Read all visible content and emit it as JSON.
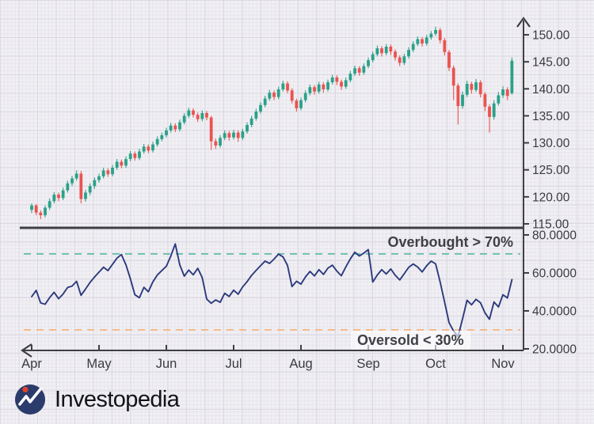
{
  "price_panel": {
    "y_axis_labels": [
      "150.00",
      "145.00",
      "140.00",
      "135.00",
      "130.00",
      "125.00",
      "120.00",
      "115.00"
    ]
  },
  "rsi_panel": {
    "y_axis_labels": [
      "80.0000",
      "60.0000",
      "40.0000",
      "20.0000"
    ],
    "overbought_label": "Overbought > 70%",
    "oversold_label": "Oversold < 30%"
  },
  "x_axis": {
    "months": [
      "Apr",
      "May",
      "Jun",
      "Jul",
      "Aug",
      "Sep",
      "Oct",
      "Nov"
    ]
  },
  "branding": {
    "logo_text": "Investopedia"
  },
  "colors": {
    "up": "#2aa189",
    "down": "#ea5350",
    "rsi_line": "#2c3a7d",
    "overbought": "#5fbcaa",
    "oversold": "#f4b57e",
    "axis": "#3f3e44",
    "logo_navy": "#2b3b6b",
    "logo_dot": "#e0452c"
  },
  "chart_data": [
    {
      "type": "candlestick",
      "name": "price",
      "ylim": [
        115,
        150
      ],
      "y_ticks": [
        150,
        145,
        140,
        135,
        130,
        125,
        120,
        115
      ],
      "x_tick_labels": [
        "Apr",
        "May",
        "Jun",
        "Jul",
        "Aug",
        "Sep",
        "Oct",
        "Nov"
      ],
      "axis_side": "right",
      "ohlc": [
        [
          117.6,
          118.8,
          117.0,
          118.4
        ],
        [
          118.4,
          118.7,
          116.6,
          117.1
        ],
        [
          117.1,
          117.5,
          115.9,
          116.6
        ],
        [
          116.6,
          118.4,
          116.2,
          118.0
        ],
        [
          118.0,
          119.7,
          117.6,
          119.2
        ],
        [
          119.2,
          120.9,
          118.8,
          120.4
        ],
        [
          120.4,
          120.8,
          119.2,
          119.8
        ],
        [
          119.8,
          121.7,
          119.4,
          121.2
        ],
        [
          121.2,
          123.0,
          120.8,
          122.5
        ],
        [
          122.5,
          123.9,
          122.0,
          123.4
        ],
        [
          123.4,
          124.9,
          123.0,
          124.3
        ],
        [
          124.3,
          124.8,
          118.8,
          119.6
        ],
        [
          119.6,
          121.3,
          119.1,
          120.8
        ],
        [
          120.8,
          122.5,
          120.3,
          122.0
        ],
        [
          122.0,
          123.6,
          121.5,
          123.1
        ],
        [
          123.1,
          124.3,
          122.6,
          123.8
        ],
        [
          123.8,
          125.4,
          123.4,
          124.9
        ],
        [
          124.9,
          125.3,
          123.7,
          124.2
        ],
        [
          124.2,
          125.9,
          123.8,
          125.4
        ],
        [
          125.4,
          127.0,
          125.0,
          126.5
        ],
        [
          126.5,
          126.9,
          125.3,
          125.8
        ],
        [
          125.8,
          127.5,
          125.4,
          127.0
        ],
        [
          127.0,
          128.5,
          126.6,
          128.0
        ],
        [
          128.0,
          128.4,
          126.7,
          127.2
        ],
        [
          127.2,
          128.9,
          126.8,
          128.4
        ],
        [
          128.4,
          129.8,
          128.0,
          129.3
        ],
        [
          129.3,
          129.7,
          128.1,
          128.6
        ],
        [
          128.6,
          130.2,
          128.2,
          129.7
        ],
        [
          129.7,
          131.2,
          129.3,
          130.7
        ],
        [
          130.7,
          131.9,
          130.3,
          131.4
        ],
        [
          131.4,
          132.8,
          131.0,
          132.3
        ],
        [
          132.3,
          133.7,
          131.9,
          133.2
        ],
        [
          133.2,
          133.6,
          132.0,
          132.5
        ],
        [
          132.5,
          134.3,
          132.1,
          133.8
        ],
        [
          133.8,
          135.5,
          133.4,
          135.0
        ],
        [
          135.0,
          136.5,
          134.6,
          136.0
        ],
        [
          136.0,
          136.4,
          134.7,
          135.2
        ],
        [
          135.2,
          135.6,
          133.9,
          134.4
        ],
        [
          134.4,
          136.0,
          134.0,
          135.5
        ],
        [
          135.5,
          135.9,
          134.2,
          134.7
        ],
        [
          134.7,
          135.0,
          128.7,
          130.3
        ],
        [
          130.3,
          130.8,
          128.9,
          129.5
        ],
        [
          129.5,
          131.4,
          129.1,
          130.9
        ],
        [
          130.9,
          132.3,
          130.5,
          131.8
        ],
        [
          131.8,
          132.2,
          130.4,
          131.0
        ],
        [
          131.0,
          132.4,
          130.6,
          131.9
        ],
        [
          131.9,
          132.3,
          130.2,
          130.9
        ],
        [
          130.9,
          132.6,
          130.5,
          132.1
        ],
        [
          132.1,
          133.8,
          131.7,
          133.3
        ],
        [
          133.3,
          135.0,
          132.9,
          134.5
        ],
        [
          134.5,
          136.3,
          134.1,
          135.8
        ],
        [
          135.8,
          137.5,
          135.4,
          137.0
        ],
        [
          137.0,
          138.7,
          136.6,
          138.2
        ],
        [
          138.2,
          139.8,
          137.8,
          139.3
        ],
        [
          139.3,
          139.7,
          137.9,
          138.5
        ],
        [
          138.5,
          140.4,
          138.1,
          139.9
        ],
        [
          139.9,
          141.5,
          139.5,
          141.0
        ],
        [
          141.0,
          141.4,
          139.2,
          139.7
        ],
        [
          139.7,
          140.1,
          137.3,
          137.8
        ],
        [
          137.8,
          138.2,
          135.8,
          136.4
        ],
        [
          136.4,
          138.4,
          136.0,
          137.9
        ],
        [
          137.9,
          139.7,
          137.5,
          139.2
        ],
        [
          139.2,
          140.8,
          138.8,
          140.3
        ],
        [
          140.3,
          140.7,
          138.9,
          139.5
        ],
        [
          139.5,
          141.3,
          139.1,
          140.8
        ],
        [
          140.8,
          141.2,
          139.3,
          139.9
        ],
        [
          139.9,
          141.7,
          139.5,
          141.2
        ],
        [
          141.2,
          142.6,
          140.8,
          142.1
        ],
        [
          142.1,
          142.5,
          140.7,
          141.3
        ],
        [
          141.3,
          141.7,
          139.8,
          140.4
        ],
        [
          140.4,
          142.1,
          140.0,
          141.6
        ],
        [
          141.6,
          143.3,
          141.2,
          142.8
        ],
        [
          142.8,
          144.3,
          142.4,
          143.8
        ],
        [
          143.8,
          144.2,
          142.4,
          143.0
        ],
        [
          143.0,
          144.7,
          142.6,
          144.2
        ],
        [
          144.2,
          145.8,
          143.8,
          145.3
        ],
        [
          145.3,
          146.9,
          144.9,
          146.4
        ],
        [
          146.4,
          148.0,
          146.0,
          147.5
        ],
        [
          147.5,
          147.9,
          146.0,
          146.6
        ],
        [
          146.6,
          148.3,
          146.2,
          147.8
        ],
        [
          147.8,
          148.2,
          146.3,
          146.9
        ],
        [
          146.9,
          147.3,
          145.2,
          145.8
        ],
        [
          145.8,
          146.2,
          144.2,
          144.8
        ],
        [
          144.8,
          146.5,
          144.4,
          146.0
        ],
        [
          146.0,
          147.7,
          145.6,
          147.2
        ],
        [
          147.2,
          148.8,
          146.8,
          148.3
        ],
        [
          148.3,
          149.7,
          147.9,
          149.2
        ],
        [
          149.2,
          149.6,
          147.8,
          148.4
        ],
        [
          148.4,
          150.0,
          148.0,
          149.5
        ],
        [
          149.5,
          150.7,
          149.1,
          150.2
        ],
        [
          150.2,
          151.5,
          149.8,
          150.9
        ],
        [
          150.9,
          151.3,
          148.4,
          149.0
        ],
        [
          149.0,
          149.4,
          146.2,
          146.8
        ],
        [
          146.8,
          147.2,
          143.3,
          143.9
        ],
        [
          143.9,
          144.3,
          137.9,
          140.6
        ],
        [
          140.6,
          141.0,
          133.4,
          136.8
        ],
        [
          136.8,
          139.5,
          136.3,
          138.9
        ],
        [
          138.9,
          141.5,
          138.5,
          140.9
        ],
        [
          140.9,
          141.3,
          139.1,
          139.8
        ],
        [
          139.8,
          141.8,
          139.4,
          141.2
        ],
        [
          141.2,
          141.6,
          138.4,
          139.0
        ],
        [
          139.0,
          139.4,
          135.9,
          136.7
        ],
        [
          136.7,
          137.1,
          131.9,
          134.8
        ],
        [
          134.8,
          137.9,
          134.3,
          137.3
        ],
        [
          137.3,
          139.4,
          136.9,
          138.8
        ],
        [
          138.8,
          140.5,
          138.3,
          139.9
        ],
        [
          139.9,
          140.3,
          137.9,
          138.7
        ],
        [
          139.2,
          145.8,
          138.9,
          145.2
        ]
      ]
    },
    {
      "type": "line",
      "name": "RSI",
      "ylim": [
        20,
        80
      ],
      "y_ticks": [
        80,
        60,
        40,
        20
      ],
      "overbought": 70,
      "oversold": 30,
      "values": [
        47.5,
        50.8,
        44.2,
        43.5,
        47.0,
        49.8,
        46.4,
        48.9,
        52.3,
        53.1,
        55.6,
        48.2,
        51.5,
        55.0,
        57.8,
        60.4,
        63.0,
        61.2,
        64.5,
        67.8,
        69.7,
        64.3,
        56.8,
        48.5,
        46.9,
        52.4,
        50.1,
        55.3,
        58.9,
        61.2,
        63.5,
        68.9,
        75.3,
        64.2,
        58.3,
        61.5,
        59.0,
        62.4,
        57.6,
        46.2,
        44.0,
        45.8,
        44.5,
        49.3,
        47.6,
        50.9,
        48.8,
        52.6,
        55.4,
        58.7,
        61.3,
        63.8,
        66.2,
        65.0,
        67.3,
        69.9,
        68.4,
        64.0,
        52.8,
        55.6,
        54.1,
        57.9,
        60.8,
        58.4,
        61.7,
        59.2,
        62.5,
        64.1,
        60.9,
        58.5,
        63.2,
        67.4,
        70.9,
        68.9,
        70.4,
        72.3,
        55.2,
        58.9,
        61.7,
        59.4,
        62.1,
        58.8,
        56.3,
        59.6,
        62.9,
        64.7,
        63.1,
        60.5,
        63.8,
        66.2,
        64.8,
        55.3,
        44.6,
        33.8,
        29.4,
        26.5,
        35.8,
        45.6,
        43.2,
        46.1,
        44.3,
        38.9,
        35.6,
        44.7,
        42.1,
        48.5,
        46.8,
        56.5
      ]
    }
  ]
}
